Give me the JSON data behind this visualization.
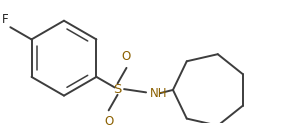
{
  "bg_color": "#ffffff",
  "bond_color": "#3d3d3d",
  "heteroatom_color": "#8b6000",
  "figsize": [
    3.04,
    1.31
  ],
  "dpi": 100,
  "xlim": [
    -1.6,
    2.05
  ],
  "ylim": [
    -0.72,
    0.72
  ]
}
